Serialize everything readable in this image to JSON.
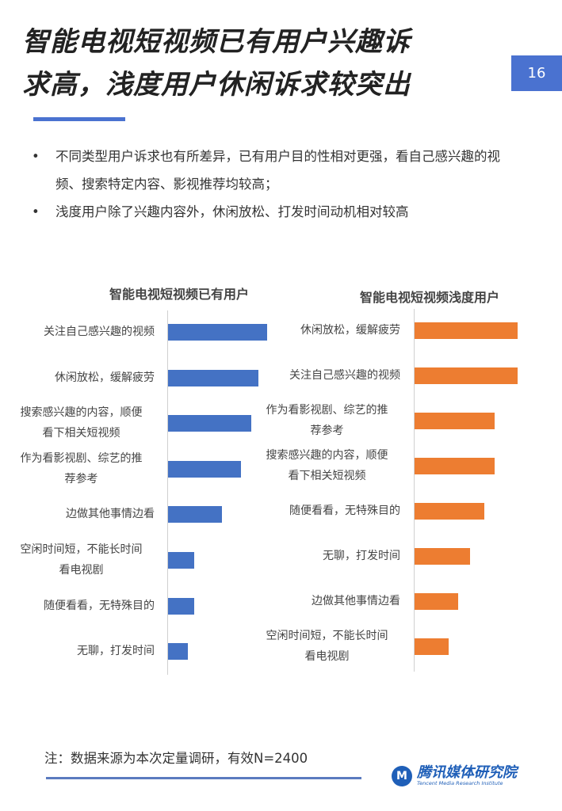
{
  "header": {
    "title_line1": "智能电视短视频已有用户兴趣诉",
    "title_line2": "求高，浅度用户休闲诉求较突出",
    "page_number": "16"
  },
  "bullets": [
    "不同类型用户诉求也有所差异，已有用户目的性相对更强，看自己感兴趣的视频、搜索特定内容、影视推荐均较高；",
    "浅度用户除了兴趣内容外，休闲放松、打发时间动机相对较高"
  ],
  "chart_data": [
    {
      "type": "bar",
      "orientation": "horizontal",
      "title": "智能电视短视频已有用户",
      "categories": [
        "关注自己感兴趣的视频",
        "休闲放松，缓解疲劳",
        "搜索感兴趣的内容，顺便看下相关短视频",
        "作为看影视剧、综艺的推荐参考",
        "边做其他事情边看",
        "空闲时间短，不能长时间看电视剧",
        "随便看看，无特殊目的",
        "无聊，打发时间"
      ],
      "values": [
        96,
        88,
        81,
        71,
        52,
        25,
        25,
        19
      ],
      "xlim": [
        0,
        100
      ],
      "color": "#4472c4",
      "grid": false,
      "value_labels": false
    },
    {
      "type": "bar",
      "orientation": "horizontal",
      "title": "智能电视短视频浅度用户",
      "categories": [
        "休闲放松，缓解疲劳",
        "关注自己感兴趣的视频",
        "作为看影视剧、综艺的推荐参考",
        "搜索感兴趣的内容，顺便看下相关短视频",
        "随便看看，无特殊目的",
        "无聊，打发时间",
        "边做其他事情边看",
        "空闲时间短，不能长时间看电视剧"
      ],
      "values": [
        100,
        100,
        78,
        78,
        68,
        54,
        42,
        33
      ],
      "xlim": [
        0,
        100
      ],
      "color": "#ed7d31",
      "grid": false,
      "value_labels": false
    }
  ],
  "footer": {
    "note": "注：数据来源为本次定量调研，有效N=2400",
    "logo_cn": "腾讯媒体研究院",
    "logo_en": "Tencent Media Research Institute"
  }
}
